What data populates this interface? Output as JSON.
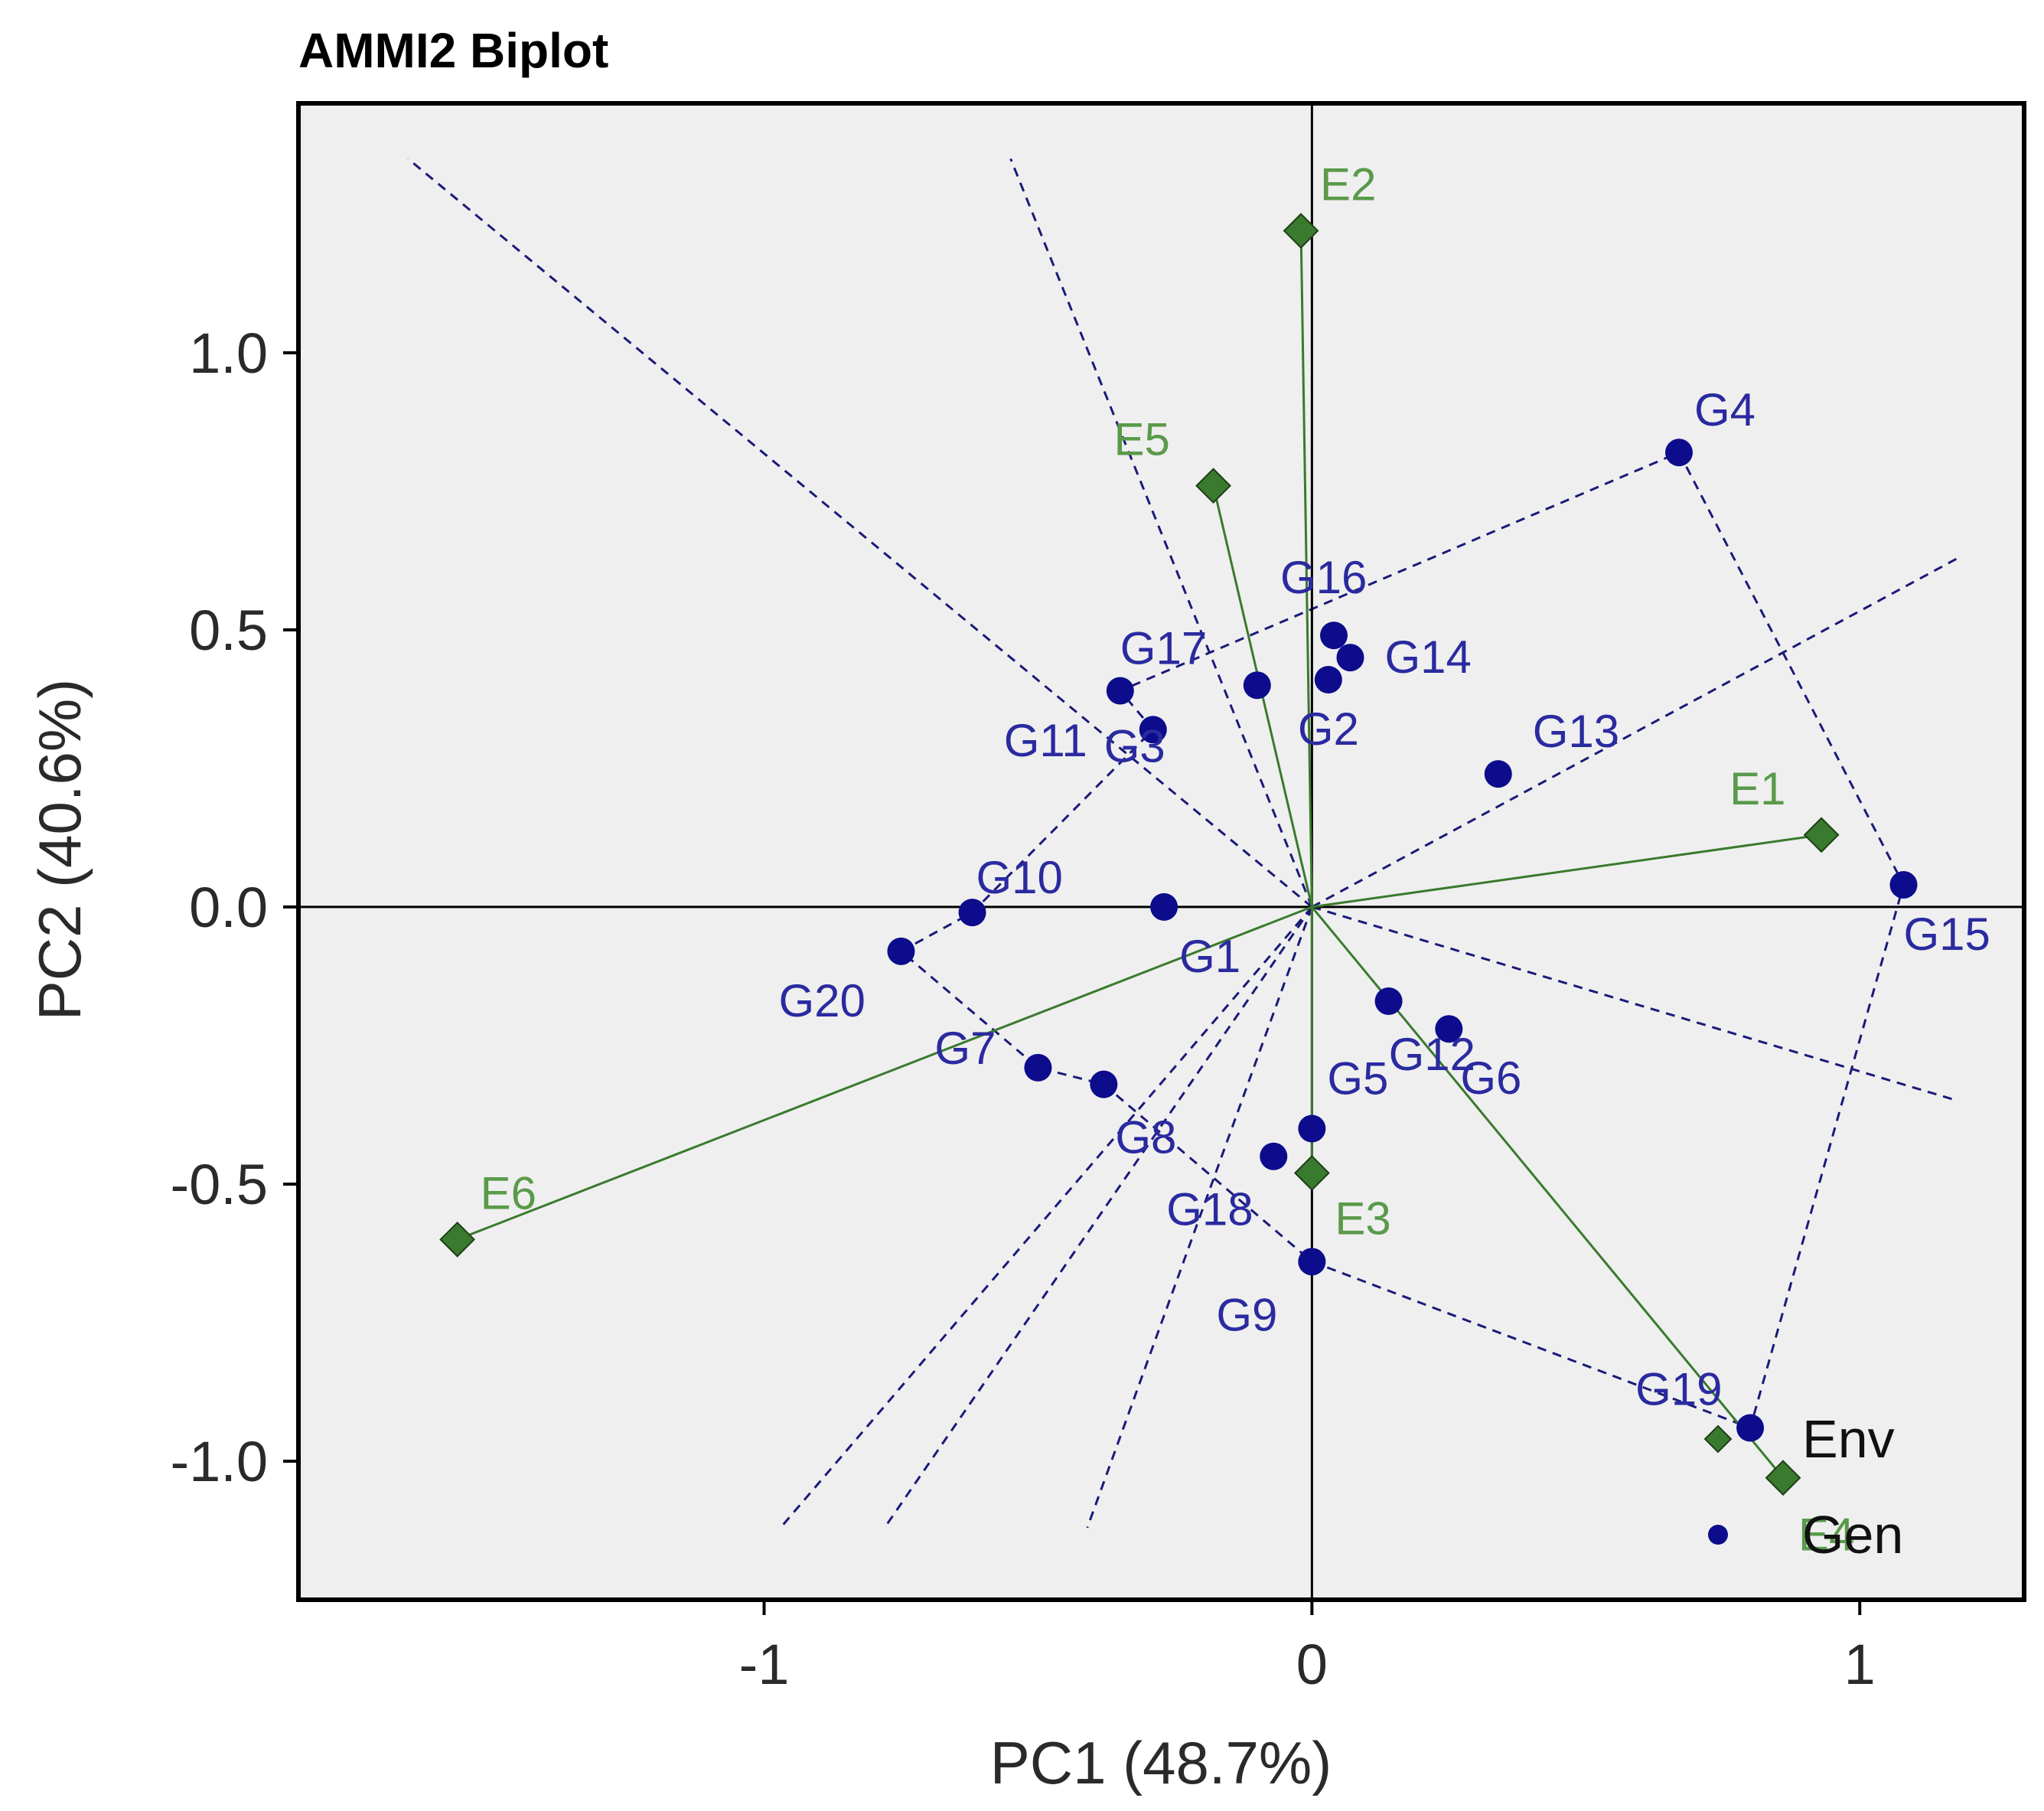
{
  "chart_data": {
    "type": "scatter",
    "title": "AMMI2 Biplot",
    "xlabel": "PC1 (48.7%)",
    "ylabel": "PC2 (40.6%)",
    "xlim": [
      -1.85,
      1.3
    ],
    "ylim": [
      -1.25,
      1.45
    ],
    "x_ticks": [
      {
        "value": -1,
        "label": "-1"
      },
      {
        "value": 0,
        "label": "0"
      },
      {
        "value": 1,
        "label": "1"
      }
    ],
    "y_ticks": [
      {
        "value": 1.0,
        "label": "1.0"
      },
      {
        "value": 0.5,
        "label": "0.5"
      },
      {
        "value": 0.0,
        "label": "0.0"
      },
      {
        "value": -0.5,
        "label": "-0.5"
      },
      {
        "value": -1.0,
        "label": "-1.0"
      }
    ],
    "colors": {
      "environment": "#3a7a2e",
      "environment_label": "#5a9a4a",
      "genotype": "#0c0c8c",
      "genotype_label": "#2a2aa0",
      "hull": "#1a1a7a",
      "panel": "#efefef"
    },
    "environments": [
      {
        "name": "E1",
        "x": 0.93,
        "y": 0.13
      },
      {
        "name": "E2",
        "x": -0.02,
        "y": 1.22
      },
      {
        "name": "E3",
        "x": 0.0,
        "y": -0.48
      },
      {
        "name": "E4",
        "x": 0.86,
        "y": -1.03
      },
      {
        "name": "E5",
        "x": -0.18,
        "y": 0.76
      },
      {
        "name": "E6",
        "x": -1.56,
        "y": -0.6
      }
    ],
    "genotypes": [
      {
        "name": "G1",
        "x": -0.27,
        "y": 0.0
      },
      {
        "name": "G2",
        "x": 0.03,
        "y": 0.41
      },
      {
        "name": "G3",
        "x": -0.1,
        "y": 0.4
      },
      {
        "name": "G4",
        "x": 0.67,
        "y": 0.82
      },
      {
        "name": "G5",
        "x": 0.0,
        "y": -0.4
      },
      {
        "name": "G6",
        "x": 0.25,
        "y": -0.22
      },
      {
        "name": "G7",
        "x": -0.5,
        "y": -0.29
      },
      {
        "name": "G8",
        "x": -0.38,
        "y": -0.32
      },
      {
        "name": "G9",
        "x": 0.0,
        "y": -0.64
      },
      {
        "name": "G10",
        "x": -0.62,
        "y": -0.01
      },
      {
        "name": "G11",
        "x": -0.29,
        "y": 0.32
      },
      {
        "name": "G12",
        "x": 0.14,
        "y": -0.17
      },
      {
        "name": "G13",
        "x": 0.34,
        "y": 0.24
      },
      {
        "name": "G14",
        "x": 0.07,
        "y": 0.45
      },
      {
        "name": "G15",
        "x": 1.08,
        "y": 0.04
      },
      {
        "name": "G16",
        "x": 0.04,
        "y": 0.49
      },
      {
        "name": "G17",
        "x": -0.35,
        "y": 0.39
      },
      {
        "name": "G18",
        "x": -0.07,
        "y": -0.45
      },
      {
        "name": "G19",
        "x": 0.8,
        "y": -0.94
      },
      {
        "name": "G20",
        "x": -0.75,
        "y": -0.08
      }
    ],
    "convex_hull": [
      "G4",
      "G15",
      "G19",
      "G9",
      "G8",
      "G7",
      "G20",
      "G10",
      "G11",
      "G17",
      "G4"
    ],
    "sector_lines": [
      {
        "to": [
          -1.65,
          1.35
        ]
      },
      {
        "to": [
          -0.55,
          1.35
        ]
      },
      {
        "to": [
          1.18,
          0.63
        ]
      },
      {
        "to": [
          1.18,
          -0.35
        ]
      },
      {
        "to": [
          -0.97,
          -1.12
        ]
      },
      {
        "to": [
          -0.78,
          -1.12
        ]
      },
      {
        "to": [
          -0.41,
          -1.12
        ]
      }
    ],
    "legend": {
      "position": "bottom-right",
      "entries": [
        {
          "label": "Env",
          "marker": "diamond"
        },
        {
          "label": "Gen",
          "marker": "circle"
        }
      ]
    }
  }
}
